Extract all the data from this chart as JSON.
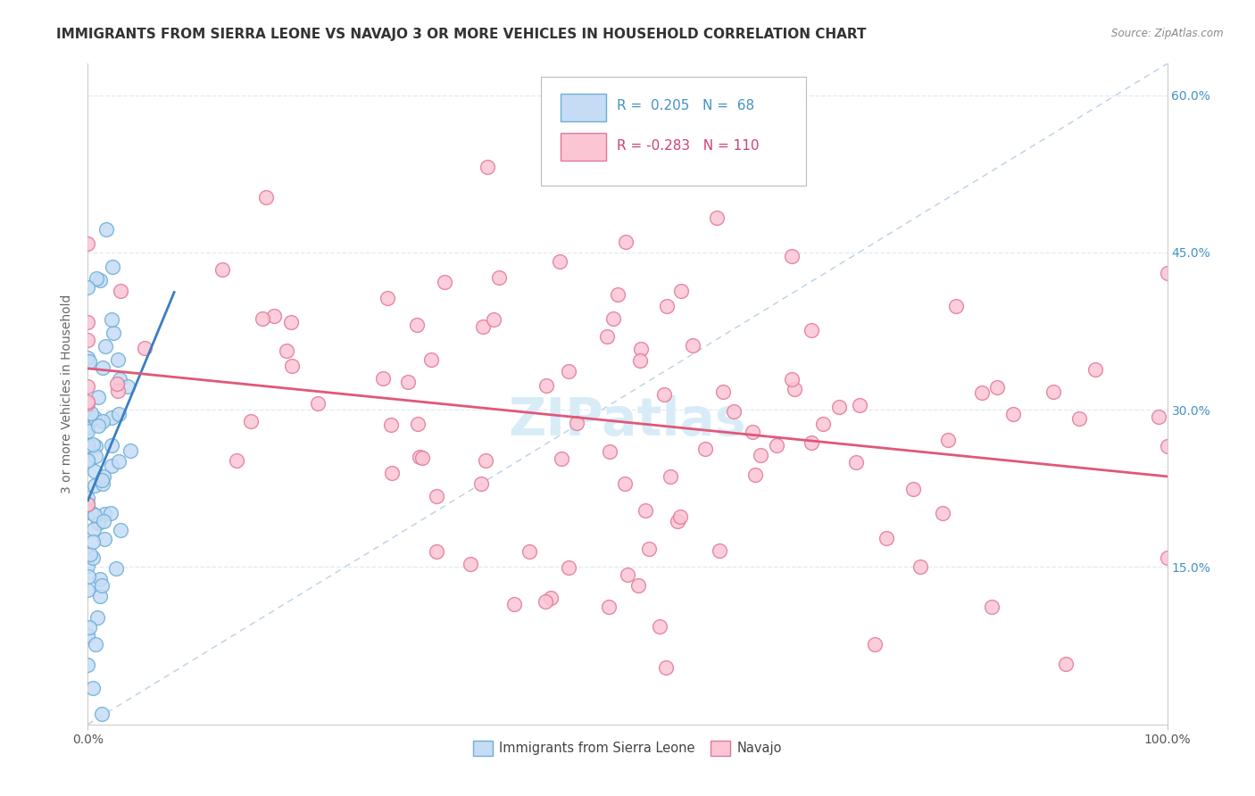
{
  "title": "IMMIGRANTS FROM SIERRA LEONE VS NAVAJO 3 OR MORE VEHICLES IN HOUSEHOLD CORRELATION CHART",
  "source": "Source: ZipAtlas.com",
  "ylabel": "3 or more Vehicles in Household",
  "xlim": [
    0.0,
    1.0
  ],
  "ylim": [
    0.0,
    0.63
  ],
  "ytick_vals": [
    0.0,
    0.15,
    0.3,
    0.45,
    0.6
  ],
  "ytick_labels": [
    "",
    "15.0%",
    "30.0%",
    "45.0%",
    "60.0%"
  ],
  "xtick_vals": [
    0.0,
    1.0
  ],
  "xtick_labels": [
    "0.0%",
    "100.0%"
  ],
  "color_blue_face": "#c6dcf5",
  "color_blue_edge": "#6baed6",
  "color_pink_face": "#fcc5d4",
  "color_pink_edge": "#e07898",
  "color_blue_trend": "#3a7fc1",
  "color_pink_trend": "#e05878",
  "color_diag": "#aec8e0",
  "color_ytick": "#4292c6",
  "color_xtick": "#555555",
  "color_title": "#333333",
  "color_source": "#888888",
  "color_watermark": "#d8ecf8",
  "color_grid": "#dde8f0",
  "background": "#ffffff",
  "legend_label1": "Immigrants from Sierra Leone",
  "legend_label2": "Navajo",
  "legend_text1": "R =  0.205   N =  68",
  "legend_text2": "R = -0.283   N = 110",
  "title_fontsize": 11,
  "tick_fontsize": 10,
  "ylabel_fontsize": 10,
  "watermark_text": "ZIPatlas",
  "marker_size": 130
}
